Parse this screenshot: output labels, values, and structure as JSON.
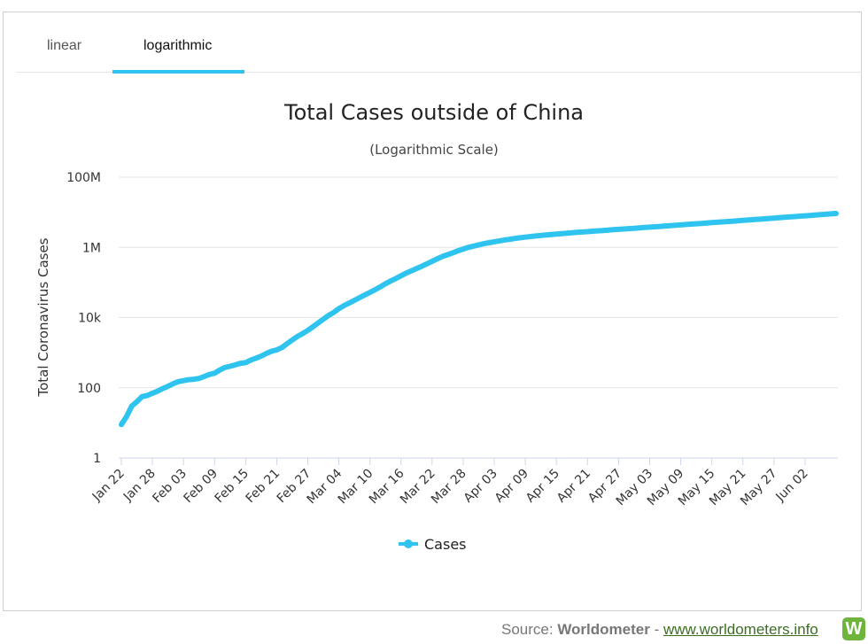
{
  "tabs": [
    {
      "label": "linear",
      "active": false
    },
    {
      "label": "logarithmic",
      "active": true
    }
  ],
  "source": {
    "prefix": "Source: ",
    "name": "Worldometer",
    "separator": " - ",
    "link": "www.worldometers.info",
    "logo_letter": "W"
  },
  "colors": {
    "series": "#2ec4ef",
    "accent": "#2ec4ef",
    "logo": "#6fb53c"
  },
  "chart_data": {
    "type": "line",
    "title": "Total Cases outside of China",
    "subtitle": "(Logarithmic Scale)",
    "ylabel": "Total Coronavirus Cases",
    "xlabel": "",
    "yscale": "log",
    "ylim": [
      1,
      100000000
    ],
    "ytick_values": [
      1,
      100,
      10000,
      1000000,
      100000000
    ],
    "ytick_labels": [
      "1",
      "100",
      "10k",
      "1M",
      "100M"
    ],
    "xtick_labels": [
      "Jan 22",
      "Jan 28",
      "Feb 03",
      "Feb 09",
      "Feb 15",
      "Feb 21",
      "Feb 27",
      "Mar 04",
      "Mar 10",
      "Mar 16",
      "Mar 22",
      "Mar 28",
      "Apr 03",
      "Apr 09",
      "Apr 15",
      "Apr 21",
      "Apr 27",
      "May 03",
      "May 09",
      "May 15",
      "May 21",
      "May 27",
      "Jun 02"
    ],
    "grid": true,
    "legend": "bottom-center",
    "series": [
      {
        "name": "Cases",
        "x": [
          "Jan 22",
          "Jan 23",
          "Jan 24",
          "Jan 25",
          "Jan 26",
          "Jan 27",
          "Jan 28",
          "Jan 29",
          "Jan 30",
          "Jan 31",
          "Feb 01",
          "Feb 02",
          "Feb 03",
          "Feb 04",
          "Feb 05",
          "Feb 06",
          "Feb 07",
          "Feb 08",
          "Feb 09",
          "Feb 10",
          "Feb 11",
          "Feb 12",
          "Feb 13",
          "Feb 14",
          "Feb 15",
          "Feb 16",
          "Feb 17",
          "Feb 18",
          "Feb 19",
          "Feb 20",
          "Feb 21",
          "Feb 22",
          "Feb 23",
          "Feb 24",
          "Feb 25",
          "Feb 26",
          "Feb 27",
          "Feb 28",
          "Feb 29",
          "Mar 01",
          "Mar 02",
          "Mar 03",
          "Mar 04",
          "Mar 05",
          "Mar 06",
          "Mar 07",
          "Mar 08",
          "Mar 09",
          "Mar 10",
          "Mar 11",
          "Mar 12",
          "Mar 13",
          "Mar 14",
          "Mar 15",
          "Mar 16",
          "Mar 17",
          "Mar 18",
          "Mar 19",
          "Mar 20",
          "Mar 21",
          "Mar 22",
          "Mar 23",
          "Mar 24",
          "Mar 25",
          "Mar 26",
          "Mar 27",
          "Mar 28",
          "Mar 29",
          "Mar 30",
          "Mar 31",
          "Apr 01",
          "Apr 02",
          "Apr 03",
          "Apr 04",
          "Apr 05",
          "Apr 06",
          "Apr 07",
          "Apr 08",
          "Apr 09",
          "Apr 10",
          "Apr 11",
          "Apr 12",
          "Apr 13",
          "Apr 14",
          "Apr 15",
          "Apr 16",
          "Apr 17",
          "Apr 18",
          "Apr 19",
          "Apr 20",
          "Apr 21",
          "Apr 22",
          "Apr 23",
          "Apr 24",
          "Apr 25",
          "Apr 26",
          "Apr 27",
          "Apr 28",
          "Apr 29",
          "Apr 30",
          "May 01",
          "May 02",
          "May 03",
          "May 04",
          "May 05",
          "May 06",
          "May 07",
          "May 08",
          "May 09",
          "May 10",
          "May 11",
          "May 12",
          "May 13",
          "May 14",
          "May 15",
          "May 16",
          "May 17",
          "May 18",
          "May 19",
          "May 20",
          "May 21",
          "May 22",
          "May 23",
          "May 24",
          "May 25",
          "May 26",
          "May 27",
          "May 28",
          "May 29",
          "May 30",
          "May 31",
          "Jun 01",
          "Jun 02",
          "Jun 03",
          "Jun 04",
          "Jun 05",
          "Jun 06",
          "Jun 07",
          "Jun 08"
        ],
        "values": [
          9,
          15,
          30,
          40,
          56,
          60,
          70,
          80,
          95,
          110,
          130,
          150,
          160,
          170,
          175,
          185,
          210,
          240,
          260,
          320,
          380,
          410,
          450,
          500,
          520,
          620,
          700,
          800,
          950,
          1100,
          1200,
          1400,
          1800,
          2300,
          2900,
          3500,
          4300,
          5500,
          7000,
          9000,
          11500,
          14000,
          18000,
          22000,
          26000,
          31000,
          37000,
          44000,
          52000,
          62000,
          75000,
          92000,
          110000,
          130000,
          155000,
          185000,
          215000,
          250000,
          290000,
          340000,
          400000,
          470000,
          550000,
          620000,
          700000,
          800000,
          900000,
          1000000,
          1090000,
          1180000,
          1270000,
          1360000,
          1450000,
          1530000,
          1620000,
          1700000,
          1790000,
          1880000,
          1960000,
          2040000,
          2110000,
          2180000,
          2250000,
          2320000,
          2390000,
          2460000,
          2530000,
          2600000,
          2670000,
          2740000,
          2810000,
          2880000,
          2950000,
          3020000,
          3100000,
          3180000,
          3260000,
          3340000,
          3420000,
          3500000,
          3590000,
          3680000,
          3770000,
          3860000,
          3960000,
          4060000,
          4160000,
          4260000,
          4370000,
          4480000,
          4590000,
          4700000,
          4820000,
          4940000,
          5060000,
          5180000,
          5310000,
          5440000,
          5580000,
          5720000,
          5870000,
          6020000,
          6170000,
          6330000,
          6490000,
          6660000,
          6830000,
          7000000,
          7180000,
          7360000,
          7550000,
          7740000,
          7940000,
          8140000,
          8350000,
          8560000,
          8780000,
          9000000,
          9230000
        ]
      }
    ]
  }
}
